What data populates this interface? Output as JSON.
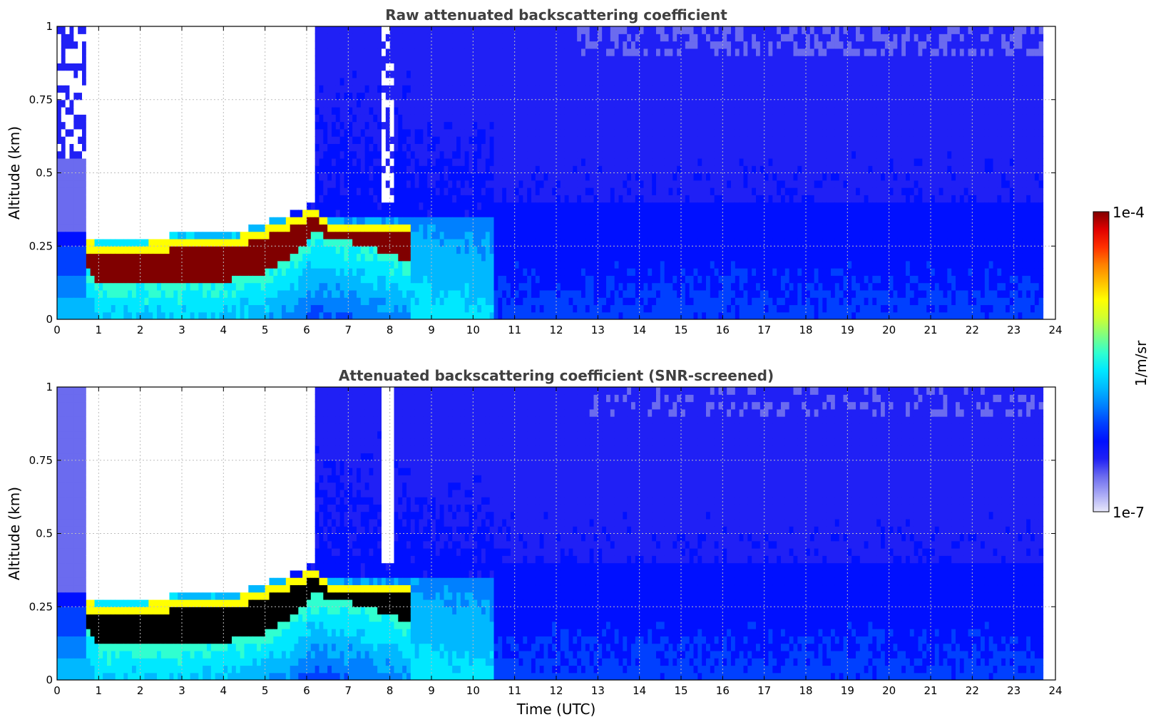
{
  "colors": {
    "colormap": [
      "#e8e8fa",
      "#a8a8f5",
      "#6b6bef",
      "#2020f5",
      "#0010ff",
      "#0040ff",
      "#0080ff",
      "#00b8ff",
      "#00e8ff",
      "#30ffd0",
      "#80ff80",
      "#d0ff30",
      "#ffff00",
      "#ffc000",
      "#ff8000",
      "#ff3000",
      "#e00000",
      "#800000"
    ],
    "screened_saturation": "#000000",
    "background": "#ffffff"
  },
  "colorbar": {
    "max_label": "1e-4",
    "min_label": "1e-7",
    "unit_label": "1/m/sr",
    "scale": "log",
    "range": [
      1e-07,
      0.0001
    ]
  },
  "chart_data": [
    {
      "type": "heatmap",
      "title": "Raw attenuated backscattering coefficient",
      "xlabel": "",
      "ylabel": "Altitude (km)",
      "xlim": [
        0,
        24
      ],
      "ylim": [
        0,
        1
      ],
      "xticks": [
        "0",
        "1",
        "2",
        "3",
        "4",
        "5",
        "6",
        "7",
        "8",
        "9",
        "10",
        "11",
        "12",
        "13",
        "14",
        "15",
        "16",
        "17",
        "18",
        "19",
        "20",
        "21",
        "22",
        "23",
        "24"
      ],
      "yticks": [
        "0",
        "0.25",
        "0.5",
        "0.75",
        "1"
      ],
      "grid": true,
      "data_end_time": 23.65,
      "fog_layer_top_km": [
        [
          0.65,
          0.27
        ],
        [
          1,
          0.26
        ],
        [
          2,
          0.26
        ],
        [
          3,
          0.27
        ],
        [
          4,
          0.27
        ],
        [
          5,
          0.31
        ],
        [
          5.7,
          0.35
        ],
        [
          6.2,
          0.38
        ],
        [
          6.6,
          0.33
        ],
        [
          7.2,
          0.33
        ],
        [
          8,
          0.33
        ],
        [
          8.4,
          0.32
        ]
      ],
      "fog_layer_base_km": [
        [
          0.65,
          0.2
        ],
        [
          1,
          0.12
        ],
        [
          2,
          0.12
        ],
        [
          3,
          0.12
        ],
        [
          4,
          0.13
        ],
        [
          5,
          0.16
        ],
        [
          5.7,
          0.22
        ],
        [
          6.2,
          0.3
        ],
        [
          6.6,
          0.27
        ],
        [
          7.2,
          0.26
        ],
        [
          8,
          0.22
        ],
        [
          8.4,
          0.2
        ]
      ],
      "peak_value_m_sr": 0.0001
    },
    {
      "type": "heatmap",
      "title": "Attenuated backscattering coefficient (SNR-screened)",
      "xlabel": "Time (UTC)",
      "ylabel": "Altitude (km)",
      "xlim": [
        0,
        24
      ],
      "ylim": [
        0,
        1
      ],
      "xticks": [
        "0",
        "1",
        "2",
        "3",
        "4",
        "5",
        "6",
        "7",
        "8",
        "9",
        "10",
        "11",
        "12",
        "13",
        "14",
        "15",
        "16",
        "17",
        "18",
        "19",
        "20",
        "21",
        "22",
        "23",
        "24"
      ],
      "yticks": [
        "0",
        "0.25",
        "0.5",
        "0.75",
        "1"
      ],
      "grid": true,
      "data_end_time": 23.65,
      "fog_layer_top_km": [
        [
          0.65,
          0.27
        ],
        [
          1,
          0.26
        ],
        [
          2,
          0.26
        ],
        [
          3,
          0.27
        ],
        [
          4,
          0.27
        ],
        [
          5,
          0.31
        ],
        [
          5.7,
          0.35
        ],
        [
          6.2,
          0.38
        ],
        [
          6.6,
          0.33
        ],
        [
          7.2,
          0.33
        ],
        [
          8,
          0.33
        ],
        [
          8.4,
          0.32
        ]
      ],
      "fog_layer_base_km": [
        [
          0.65,
          0.2
        ],
        [
          1,
          0.12
        ],
        [
          2,
          0.12
        ],
        [
          3,
          0.12
        ],
        [
          4,
          0.13
        ],
        [
          5,
          0.16
        ],
        [
          5.7,
          0.22
        ],
        [
          6.2,
          0.3
        ],
        [
          6.6,
          0.27
        ],
        [
          7.2,
          0.26
        ],
        [
          8,
          0.22
        ],
        [
          8.4,
          0.2
        ]
      ],
      "peak_value_m_sr": 0.0001
    }
  ]
}
